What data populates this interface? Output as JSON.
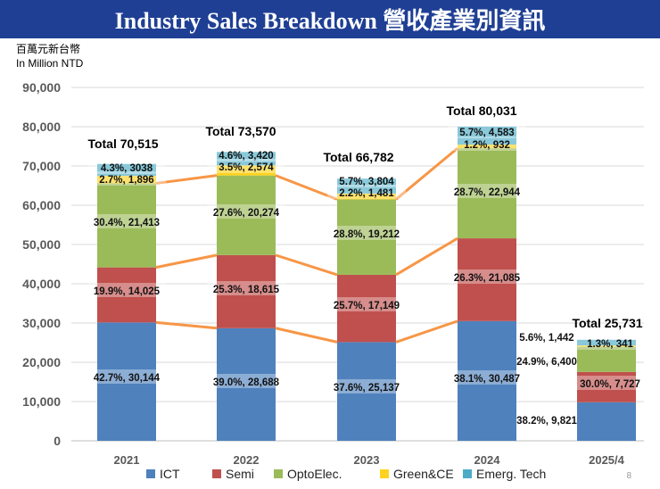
{
  "header": {
    "title": "Industry Sales Breakdown  營收產業別資訊",
    "unit_zh": "百萬元新台幣",
    "unit_en": "In Million NTD",
    "page_number": "8"
  },
  "chart_data": {
    "type": "bar",
    "stacked": true,
    "title": "Industry Sales Breakdown 營收產業別資訊",
    "ylabel": "In Million NTD",
    "ylim": [
      0,
      90000
    ],
    "yticks": [
      "0",
      "10,000",
      "20,000",
      "30,000",
      "40,000",
      "50,000",
      "60,000",
      "70,000",
      "80,000",
      "90,000"
    ],
    "yvalues": [
      0,
      10000,
      20000,
      30000,
      40000,
      50000,
      60000,
      70000,
      80000,
      90000
    ],
    "categories": [
      "2021",
      "2022",
      "2023",
      "2024",
      "2025/4"
    ],
    "totals": [
      "Total 70,515",
      "Total 73,570",
      "Total 66,782",
      "Total 80,031",
      "Total 25,731"
    ],
    "series": [
      {
        "name": "ICT",
        "color": "#4f81bd",
        "values": [
          30144,
          28688,
          25137,
          30487,
          9821
        ],
        "labels": [
          "42.7%, 30,144",
          "39.0%, 28,688",
          "37.6%, 25,137",
          "38.1%, 30,487",
          "38.2%, 9,821"
        ]
      },
      {
        "name": "Semi",
        "color": "#c0504d",
        "values": [
          14025,
          18615,
          17149,
          21085,
          7727
        ],
        "labels": [
          "19.9%, 14,025",
          "25.3%, 18,615",
          "25.7%, 17,149",
          "26.3%, 21,085",
          "30.0%, 7,727"
        ]
      },
      {
        "name": "OptoElec.",
        "color": "#9bbb59",
        "values": [
          21413,
          20274,
          19212,
          22944,
          6400
        ],
        "labels": [
          "30.4%, 21,413",
          "27.6%, 20,274",
          "28.8%, 19,212",
          "28.7%, 22,944",
          "24.9%, 6,400"
        ]
      },
      {
        "name": "Green&CE",
        "color": "#ffd320",
        "values": [
          1896,
          2574,
          1481,
          932,
          341
        ],
        "labels": [
          "2.7%, 1,896",
          "3.5%, 2,574",
          "2.2%, 1,481",
          "1.2%, 932",
          "1.3%, 341"
        ]
      },
      {
        "name": "Emerg. Tech",
        "color": "#4bacc6",
        "values": [
          3038,
          3420,
          3804,
          4583,
          1442
        ],
        "labels": [
          "4.3%, 3038",
          "4.6%, 3,420",
          "5.7%, 3,804",
          "5.7%, 4,583",
          "5.6%, 1,442"
        ]
      }
    ],
    "connector_color": "#f79646",
    "grid": true,
    "legend_position": "bottom"
  }
}
